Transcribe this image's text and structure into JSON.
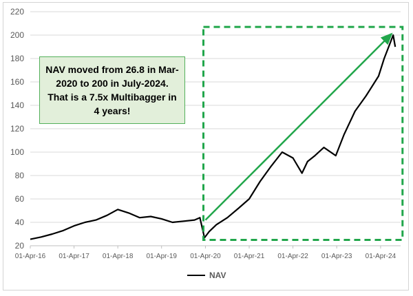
{
  "chart_data": {
    "type": "line",
    "title": "",
    "xlabel": "",
    "ylabel": "",
    "ylim": [
      20,
      220
    ],
    "yticks": [
      20,
      40,
      60,
      80,
      100,
      120,
      140,
      160,
      180,
      200,
      220
    ],
    "xticks": [
      "01-Apr-16",
      "01-Apr-17",
      "01-Apr-18",
      "01-Apr-19",
      "01-Apr-20",
      "01-Apr-21",
      "01-Apr-22",
      "01-Apr-23",
      "01-Apr-24"
    ],
    "grid": true,
    "legend_position": "bottom",
    "series": [
      {
        "name": "NAV",
        "color": "#000000",
        "x": [
          "2016-04-01",
          "2016-07-01",
          "2016-10-01",
          "2017-01-01",
          "2017-04-01",
          "2017-07-01",
          "2017-10-01",
          "2018-01-01",
          "2018-04-01",
          "2018-07-01",
          "2018-10-01",
          "2019-01-01",
          "2019-04-01",
          "2019-07-01",
          "2019-10-01",
          "2020-01-01",
          "2020-02-15",
          "2020-03-24",
          "2020-05-01",
          "2020-07-01",
          "2020-10-01",
          "2021-01-01",
          "2021-04-01",
          "2021-07-01",
          "2021-10-01",
          "2022-01-01",
          "2022-04-01",
          "2022-06-15",
          "2022-08-01",
          "2022-10-01",
          "2022-12-15",
          "2023-03-24",
          "2023-06-01",
          "2023-09-01",
          "2023-12-01",
          "2024-02-01",
          "2024-03-15",
          "2024-05-01",
          "2024-06-15",
          "2024-07-15",
          "2024-08-01"
        ],
        "values": [
          25.5,
          27.5,
          30,
          33,
          37,
          40,
          42,
          46,
          51,
          48,
          44,
          45,
          43,
          40,
          41,
          42,
          44,
          26.8,
          32,
          38,
          44,
          52,
          60,
          75,
          88,
          100,
          95,
          82,
          92,
          97,
          104,
          97,
          115,
          135,
          148,
          158,
          165,
          180,
          192,
          200,
          190
        ]
      }
    ],
    "annotation": {
      "text": "NAV moved from 26.8 in Mar-2020 to 200 in July-2024. That is a 7.5x Multibagger in 4 years!",
      "arrow_from": {
        "x": "2020-04-01",
        "y": 42
      },
      "arrow_to": {
        "x": "2024-07-01",
        "y": 201
      },
      "box_color": "#e2efda",
      "arrow_color": "#21a64b",
      "highlight_from": {
        "x": "2020-03-15",
        "y": 25
      },
      "highlight_to": {
        "x": "2024-10-01",
        "y": 207
      },
      "highlight_color": "#21a64b"
    }
  }
}
